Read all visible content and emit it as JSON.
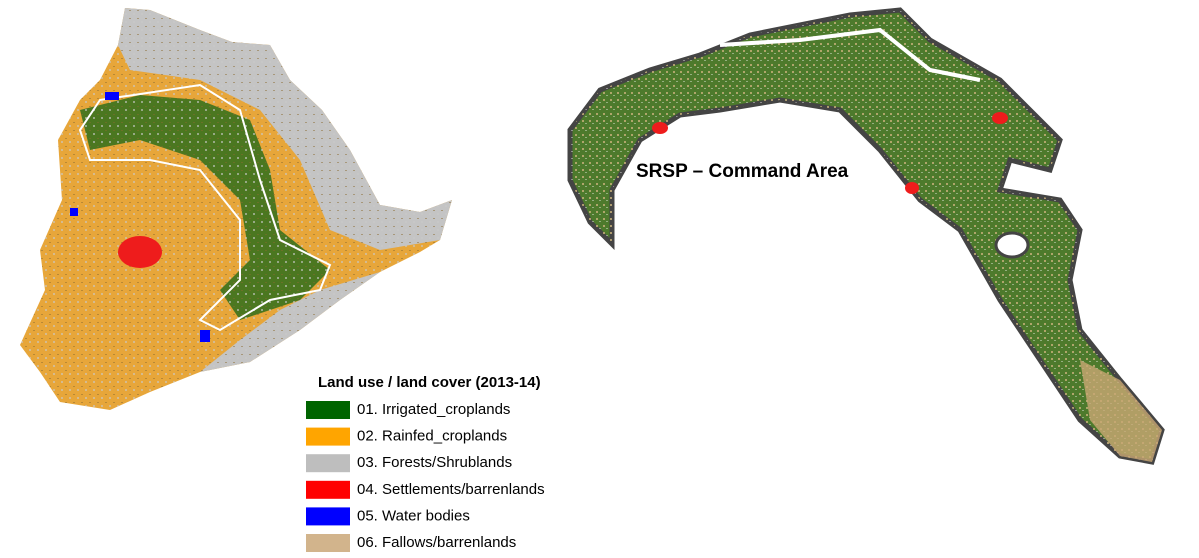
{
  "map_label": "SRSP – Command Area",
  "legend": {
    "title": "Land use / land cover (2013-14)",
    "items": [
      {
        "label": "01. Irrigated_croplands",
        "color": "#006400"
      },
      {
        "label": "02. Rainfed_croplands",
        "color": "#ffa500"
      },
      {
        "label": "03. Forests/Shrublands",
        "color": "#bebebe"
      },
      {
        "label": "04. Settlements/barrenlands",
        "color": "#ff0000"
      },
      {
        "label": "05. Water bodies",
        "color": "#0000ff"
      },
      {
        "label": "06. Fallows/barrenlands",
        "color": "#d2b48c"
      }
    ]
  }
}
